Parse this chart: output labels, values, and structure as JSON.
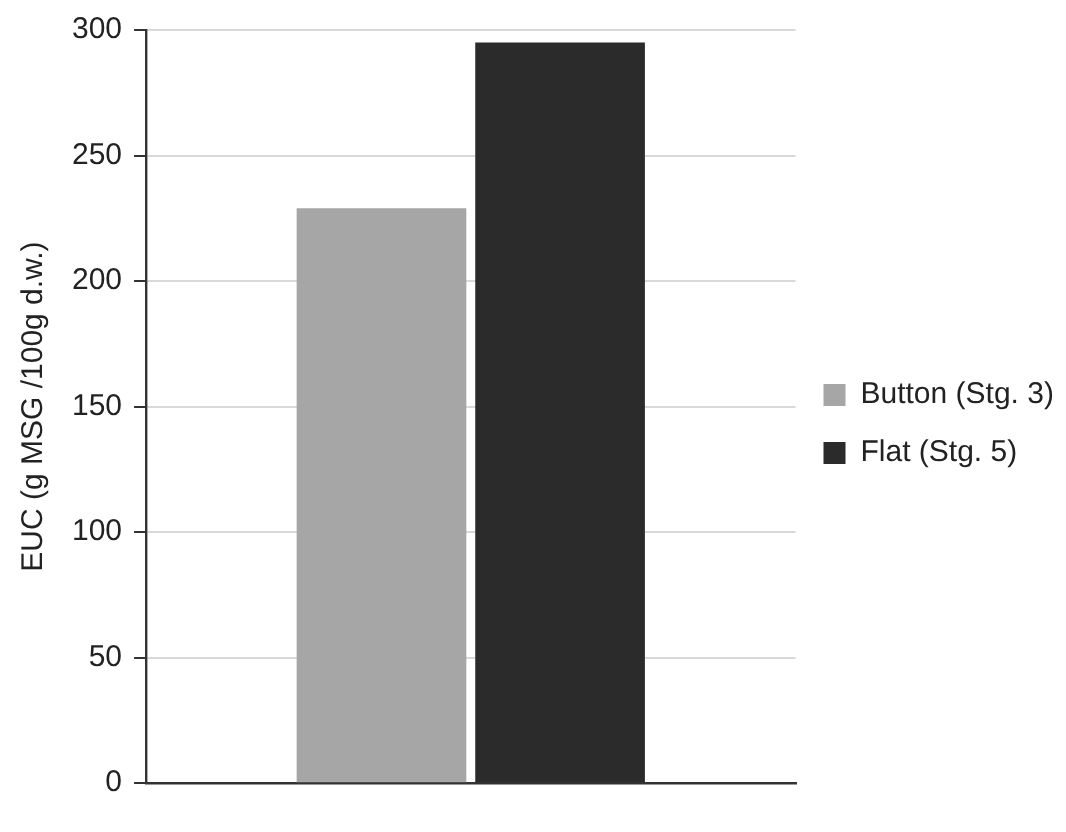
{
  "chart_data": {
    "type": "bar",
    "ylabel": "EUC (g MSG /100g d.w.)",
    "categories": [
      null
    ],
    "series": [
      {
        "name": "Button (Stg. 3)",
        "color": "#a6a6a6",
        "values": [
          229
        ]
      },
      {
        "name": "Flat (Stg. 5)",
        "color": "#2b2b2b",
        "values": [
          295
        ]
      }
    ],
    "ylim": [
      0,
      300
    ],
    "yticks": [
      0,
      50,
      100,
      150,
      200,
      250,
      300
    ],
    "grid": "y",
    "legend": "right"
  }
}
